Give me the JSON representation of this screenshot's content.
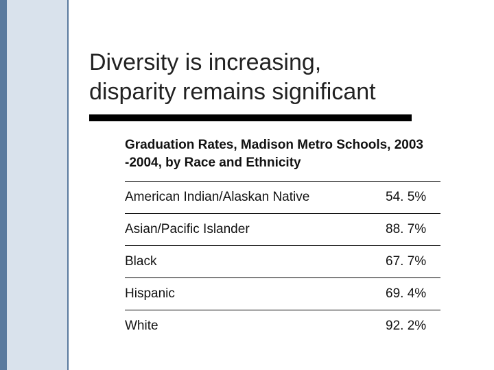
{
  "colors": {
    "stripe_bg": "#d9e2ec",
    "stripe_border": "#5a7a9e",
    "rule": "#000000",
    "text": "#111111",
    "bg": "#ffffff"
  },
  "title_line1": "Diversity is increasing,",
  "title_line2": "disparity remains significant",
  "table": {
    "type": "table",
    "header": "Graduation Rates, Madison Metro Schools, 2003 -2004, by Race and Ethnicity",
    "rows": [
      {
        "label": "American Indian/Alaskan Native",
        "value": "54. 5%"
      },
      {
        "label": "Asian/Pacific Islander",
        "value": "88. 7%"
      },
      {
        "label": "Black",
        "value": "67. 7%"
      },
      {
        "label": "Hispanic",
        "value": "69. 4%"
      },
      {
        "label": "White",
        "value": "92. 2%"
      }
    ],
    "header_fontsize": 19,
    "row_fontsize": 19,
    "row_border_color": "#000000"
  }
}
